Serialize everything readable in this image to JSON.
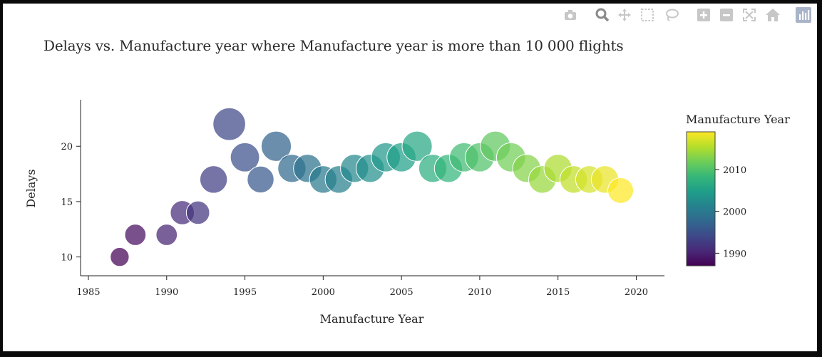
{
  "modebar": {
    "buttons": [
      {
        "name": "camera-icon",
        "tooltip": "Download plot as a png"
      },
      {
        "name": "zoom-icon",
        "tooltip": "Zoom"
      },
      {
        "name": "pan-icon",
        "tooltip": "Pan"
      },
      {
        "name": "box-select-icon",
        "tooltip": "Box Select"
      },
      {
        "name": "lasso-select-icon",
        "tooltip": "Lasso Select"
      },
      {
        "name": "zoom-in-icon",
        "tooltip": "Zoom in"
      },
      {
        "name": "zoom-out-icon",
        "tooltip": "Zoom out"
      },
      {
        "name": "autoscale-icon",
        "tooltip": "Autoscale"
      },
      {
        "name": "reset-axes-icon",
        "tooltip": "Reset axes"
      },
      {
        "name": "plotly-logo-icon",
        "tooltip": "Produced with Plotly"
      }
    ]
  },
  "chart_data": {
    "type": "scatter",
    "title": "Delays vs. Manufacture year where Manufacture year is more than 10 000 flights",
    "xlabel": "Manufacture Year",
    "ylabel": "Delays",
    "xlim": [
      1984.5,
      2021.8
    ],
    "ylim": [
      8.3,
      24.2
    ],
    "xticks": [
      1985,
      1990,
      1995,
      2000,
      2005,
      2010,
      2015,
      2020
    ],
    "yticks": [
      10,
      15,
      20
    ],
    "grid": false,
    "colorbar": {
      "title": "Manufacture Year",
      "colorscale": "Viridis",
      "range": [
        1987,
        2019
      ],
      "ticks": [
        1990,
        2000,
        2010
      ]
    },
    "points": [
      {
        "x": 1987,
        "y": 10,
        "size": 0.55
      },
      {
        "x": 1988,
        "y": 12,
        "size": 0.62
      },
      {
        "x": 1990,
        "y": 12,
        "size": 0.62
      },
      {
        "x": 1991,
        "y": 14,
        "size": 0.7
      },
      {
        "x": 1992,
        "y": 14,
        "size": 0.68
      },
      {
        "x": 1993,
        "y": 17,
        "size": 0.8
      },
      {
        "x": 1994,
        "y": 22,
        "size": 0.95
      },
      {
        "x": 1995,
        "y": 19,
        "size": 0.85
      },
      {
        "x": 1996,
        "y": 17,
        "size": 0.78
      },
      {
        "x": 1997,
        "y": 20,
        "size": 0.88
      },
      {
        "x": 1998,
        "y": 18,
        "size": 0.82
      },
      {
        "x": 1999,
        "y": 18,
        "size": 0.82
      },
      {
        "x": 2000,
        "y": 17,
        "size": 0.8
      },
      {
        "x": 2001,
        "y": 17,
        "size": 0.8
      },
      {
        "x": 2002,
        "y": 18,
        "size": 0.82
      },
      {
        "x": 2003,
        "y": 18,
        "size": 0.82
      },
      {
        "x": 2004,
        "y": 19,
        "size": 0.85
      },
      {
        "x": 2005,
        "y": 19,
        "size": 0.85
      },
      {
        "x": 2006,
        "y": 20,
        "size": 0.88
      },
      {
        "x": 2007,
        "y": 18,
        "size": 0.82
      },
      {
        "x": 2008,
        "y": 18,
        "size": 0.82
      },
      {
        "x": 2009,
        "y": 19,
        "size": 0.85
      },
      {
        "x": 2010,
        "y": 19,
        "size": 0.85
      },
      {
        "x": 2011,
        "y": 20,
        "size": 0.88
      },
      {
        "x": 2012,
        "y": 19,
        "size": 0.85
      },
      {
        "x": 2013,
        "y": 18,
        "size": 0.82
      },
      {
        "x": 2014,
        "y": 17,
        "size": 0.8
      },
      {
        "x": 2015,
        "y": 18,
        "size": 0.82
      },
      {
        "x": 2016,
        "y": 17,
        "size": 0.8
      },
      {
        "x": 2017,
        "y": 17,
        "size": 0.8
      },
      {
        "x": 2018,
        "y": 17,
        "size": 0.8
      },
      {
        "x": 2019,
        "y": 16,
        "size": 0.75
      }
    ]
  }
}
